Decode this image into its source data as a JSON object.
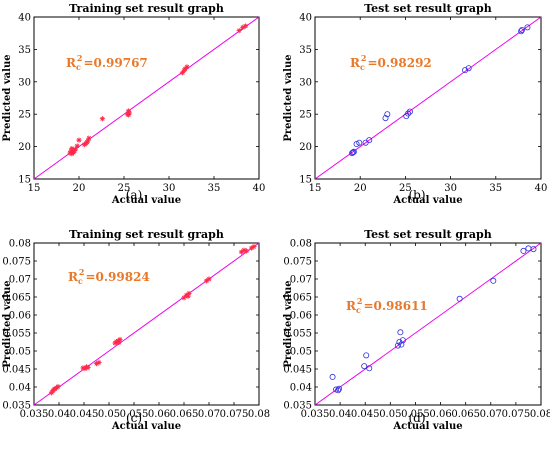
{
  "colors": {
    "fit_line": "#ee00ee",
    "train_marker": "#ff2a4a",
    "test_marker": "#3030dd",
    "r2_text": "#e8782a"
  },
  "chart_data": [
    {
      "type": "scatter",
      "panel_label": "(a)",
      "title": "Training set result graph",
      "xlabel": "Actual value",
      "ylabel": "Predicted value",
      "xlim": [
        15,
        40
      ],
      "ylim": [
        15,
        40
      ],
      "xticks": [
        "15",
        "20",
        "25",
        "30",
        "35",
        "40"
      ],
      "yticks": [
        "15",
        "20",
        "25",
        "30",
        "35",
        "40"
      ],
      "r2_main": "R",
      "r2_sub": "c",
      "r2_value": "=0.99767",
      "marker": "asterisk",
      "line": [
        [
          15,
          15
        ],
        [
          40,
          40
        ]
      ],
      "points": [
        [
          19.0,
          19.0
        ],
        [
          19.1,
          19.3
        ],
        [
          19.2,
          18.9
        ],
        [
          19.3,
          19.5
        ],
        [
          19.4,
          19.1
        ],
        [
          19.2,
          19.7
        ],
        [
          19.5,
          19.4
        ],
        [
          19.6,
          19.6
        ],
        [
          19.8,
          20.1
        ],
        [
          20.0,
          21.0
        ],
        [
          20.6,
          20.3
        ],
        [
          20.8,
          20.5
        ],
        [
          21.0,
          20.9
        ],
        [
          21.1,
          21.3
        ],
        [
          20.9,
          20.7
        ],
        [
          22.6,
          24.3
        ],
        [
          25.4,
          25.0
        ],
        [
          25.5,
          25.5
        ],
        [
          25.6,
          25.2
        ],
        [
          25.5,
          24.9
        ],
        [
          31.5,
          31.4
        ],
        [
          31.8,
          32.0
        ],
        [
          32.0,
          32.3
        ],
        [
          31.7,
          31.8
        ],
        [
          37.8,
          37.9
        ],
        [
          38.2,
          38.4
        ],
        [
          38.5,
          38.6
        ]
      ]
    },
    {
      "type": "scatter",
      "panel_label": "(b)",
      "title": "Test set result graph",
      "xlabel": "Actual value",
      "ylabel": "Predicted value",
      "xlim": [
        15,
        40
      ],
      "ylim": [
        15,
        40
      ],
      "xticks": [
        "15",
        "20",
        "25",
        "30",
        "35",
        "40"
      ],
      "yticks": [
        "15",
        "20",
        "25",
        "30",
        "35",
        "40"
      ],
      "r2_main": "R",
      "r2_sub": "c",
      "r2_value": "=0.98292",
      "marker": "circle",
      "line": [
        [
          15,
          15
        ],
        [
          40,
          40
        ]
      ],
      "points": [
        [
          19.1,
          19.0
        ],
        [
          19.3,
          19.2
        ],
        [
          19.2,
          19.1
        ],
        [
          19.6,
          20.4
        ],
        [
          19.9,
          20.6
        ],
        [
          20.6,
          20.6
        ],
        [
          21.0,
          21.0
        ],
        [
          22.8,
          24.4
        ],
        [
          23.0,
          25.0
        ],
        [
          25.1,
          24.7
        ],
        [
          25.3,
          25.1
        ],
        [
          25.5,
          25.4
        ],
        [
          31.6,
          31.8
        ],
        [
          32.0,
          32.1
        ],
        [
          37.8,
          37.8
        ],
        [
          37.9,
          38.0
        ],
        [
          38.5,
          38.4
        ]
      ]
    },
    {
      "type": "scatter",
      "panel_label": "(c)",
      "title": "Training set result graph",
      "xlabel": "Actual value",
      "ylabel": "Predicted value",
      "xlim": [
        0.035,
        0.08
      ],
      "ylim": [
        0.035,
        0.08
      ],
      "xticks": [
        "0.035",
        "0.04",
        "0.045",
        "0.05",
        "0.055",
        "0.06",
        "0.065",
        "0.07",
        "0.075",
        "0.08"
      ],
      "yticks": [
        "0.035",
        "0.04",
        "0.045",
        "0.05",
        "0.055",
        "0.06",
        "0.065",
        "0.07",
        "0.075",
        "0.08"
      ],
      "r2_main": "R",
      "r2_sub": "c",
      "r2_value": "=0.99824",
      "marker": "asterisk",
      "line": [
        [
          0.035,
          0.035
        ],
        [
          0.08,
          0.08
        ]
      ],
      "points": [
        [
          0.0385,
          0.0384
        ],
        [
          0.0388,
          0.039
        ],
        [
          0.039,
          0.0393
        ],
        [
          0.0392,
          0.0395
        ],
        [
          0.0395,
          0.0398
        ],
        [
          0.0398,
          0.0401
        ],
        [
          0.0448,
          0.0453
        ],
        [
          0.0452,
          0.0451
        ],
        [
          0.0455,
          0.0456
        ],
        [
          0.0458,
          0.0454
        ],
        [
          0.0475,
          0.0465
        ],
        [
          0.048,
          0.0468
        ],
        [
          0.0512,
          0.0522
        ],
        [
          0.0515,
          0.0526
        ],
        [
          0.0518,
          0.0528
        ],
        [
          0.052,
          0.0524
        ],
        [
          0.0522,
          0.0532
        ],
        [
          0.065,
          0.0648
        ],
        [
          0.0655,
          0.0655
        ],
        [
          0.066,
          0.066
        ],
        [
          0.0658,
          0.0652
        ],
        [
          0.0695,
          0.0695
        ],
        [
          0.07,
          0.07
        ],
        [
          0.0765,
          0.0775
        ],
        [
          0.077,
          0.078
        ],
        [
          0.0775,
          0.0778
        ],
        [
          0.0785,
          0.0786
        ],
        [
          0.079,
          0.079
        ]
      ]
    },
    {
      "type": "scatter",
      "panel_label": "(d)",
      "title": "Test set result graph",
      "xlabel": "Actual value",
      "ylabel": "Predicted value",
      "xlim": [
        0.035,
        0.08
      ],
      "ylim": [
        0.035,
        0.08
      ],
      "xticks": [
        "0.035",
        "0.04",
        "0.045",
        "0.05",
        "0.055",
        "0.06",
        "0.065",
        "0.07",
        "0.075",
        "0.08"
      ],
      "yticks": [
        "0.035",
        "0.04",
        "0.045",
        "0.05",
        "0.055",
        "0.06",
        "0.065",
        "0.07",
        "0.075",
        "0.08"
      ],
      "r2_main": "R",
      "r2_sub": "c",
      "r2_value": "=0.98611",
      "marker": "circle",
      "line": [
        [
          0.035,
          0.035
        ],
        [
          0.08,
          0.08
        ]
      ],
      "points": [
        [
          0.0385,
          0.0428
        ],
        [
          0.0392,
          0.0393
        ],
        [
          0.0396,
          0.0391
        ],
        [
          0.0398,
          0.0395
        ],
        [
          0.0448,
          0.0458
        ],
        [
          0.0452,
          0.0488
        ],
        [
          0.0458,
          0.0452
        ],
        [
          0.0515,
          0.0515
        ],
        [
          0.0518,
          0.0525
        ],
        [
          0.052,
          0.0552
        ],
        [
          0.0522,
          0.0518
        ],
        [
          0.0525,
          0.053
        ],
        [
          0.0638,
          0.0645
        ],
        [
          0.0705,
          0.0695
        ],
        [
          0.0765,
          0.0778
        ],
        [
          0.0775,
          0.0785
        ],
        [
          0.0785,
          0.0783
        ]
      ]
    }
  ]
}
